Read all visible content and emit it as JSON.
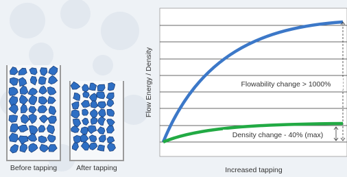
{
  "containers": [
    {
      "label": "Before tapping"
    },
    {
      "label": "After tapping"
    }
  ],
  "graph": {
    "y_label": "Flow Energy / Density",
    "x_label": "Increased tapping",
    "annotations": [
      "Flowability change > 1000%",
      "Density change - 40% (max)"
    ]
  }
}
